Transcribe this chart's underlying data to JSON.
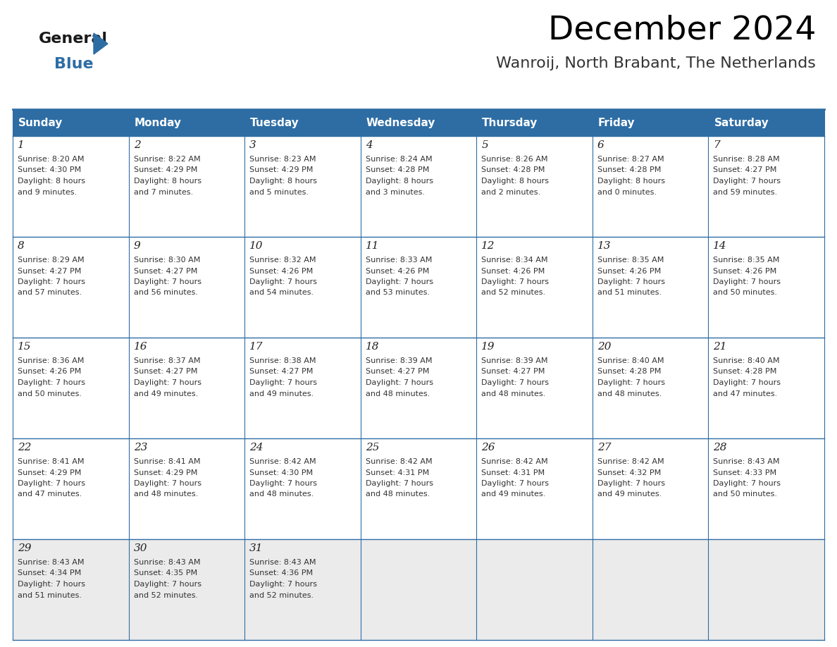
{
  "title": "December 2024",
  "subtitle": "Wanroij, North Brabant, The Netherlands",
  "header_color": "#2E6DA4",
  "header_text_color": "#FFFFFF",
  "row_bg_colors": [
    "#FFFFFF",
    "#FFFFFF",
    "#FFFFFF",
    "#FFFFFF",
    "#EBEBEB"
  ],
  "border_color": "#2E6DA4",
  "cell_border_color": "#AAAAAA",
  "day_names": [
    "Sunday",
    "Monday",
    "Tuesday",
    "Wednesday",
    "Thursday",
    "Friday",
    "Saturday"
  ],
  "weeks": [
    [
      {
        "day": 1,
        "sunrise": "8:20 AM",
        "sunset": "4:30 PM",
        "daylight1": "8 hours",
        "daylight2": "and 9 minutes."
      },
      {
        "day": 2,
        "sunrise": "8:22 AM",
        "sunset": "4:29 PM",
        "daylight1": "8 hours",
        "daylight2": "and 7 minutes."
      },
      {
        "day": 3,
        "sunrise": "8:23 AM",
        "sunset": "4:29 PM",
        "daylight1": "8 hours",
        "daylight2": "and 5 minutes."
      },
      {
        "day": 4,
        "sunrise": "8:24 AM",
        "sunset": "4:28 PM",
        "daylight1": "8 hours",
        "daylight2": "and 3 minutes."
      },
      {
        "day": 5,
        "sunrise": "8:26 AM",
        "sunset": "4:28 PM",
        "daylight1": "8 hours",
        "daylight2": "and 2 minutes."
      },
      {
        "day": 6,
        "sunrise": "8:27 AM",
        "sunset": "4:28 PM",
        "daylight1": "8 hours",
        "daylight2": "and 0 minutes."
      },
      {
        "day": 7,
        "sunrise": "8:28 AM",
        "sunset": "4:27 PM",
        "daylight1": "7 hours",
        "daylight2": "and 59 minutes."
      }
    ],
    [
      {
        "day": 8,
        "sunrise": "8:29 AM",
        "sunset": "4:27 PM",
        "daylight1": "7 hours",
        "daylight2": "and 57 minutes."
      },
      {
        "day": 9,
        "sunrise": "8:30 AM",
        "sunset": "4:27 PM",
        "daylight1": "7 hours",
        "daylight2": "and 56 minutes."
      },
      {
        "day": 10,
        "sunrise": "8:32 AM",
        "sunset": "4:26 PM",
        "daylight1": "7 hours",
        "daylight2": "and 54 minutes."
      },
      {
        "day": 11,
        "sunrise": "8:33 AM",
        "sunset": "4:26 PM",
        "daylight1": "7 hours",
        "daylight2": "and 53 minutes."
      },
      {
        "day": 12,
        "sunrise": "8:34 AM",
        "sunset": "4:26 PM",
        "daylight1": "7 hours",
        "daylight2": "and 52 minutes."
      },
      {
        "day": 13,
        "sunrise": "8:35 AM",
        "sunset": "4:26 PM",
        "daylight1": "7 hours",
        "daylight2": "and 51 minutes."
      },
      {
        "day": 14,
        "sunrise": "8:35 AM",
        "sunset": "4:26 PM",
        "daylight1": "7 hours",
        "daylight2": "and 50 minutes."
      }
    ],
    [
      {
        "day": 15,
        "sunrise": "8:36 AM",
        "sunset": "4:26 PM",
        "daylight1": "7 hours",
        "daylight2": "and 50 minutes."
      },
      {
        "day": 16,
        "sunrise": "8:37 AM",
        "sunset": "4:27 PM",
        "daylight1": "7 hours",
        "daylight2": "and 49 minutes."
      },
      {
        "day": 17,
        "sunrise": "8:38 AM",
        "sunset": "4:27 PM",
        "daylight1": "7 hours",
        "daylight2": "and 49 minutes."
      },
      {
        "day": 18,
        "sunrise": "8:39 AM",
        "sunset": "4:27 PM",
        "daylight1": "7 hours",
        "daylight2": "and 48 minutes."
      },
      {
        "day": 19,
        "sunrise": "8:39 AM",
        "sunset": "4:27 PM",
        "daylight1": "7 hours",
        "daylight2": "and 48 minutes."
      },
      {
        "day": 20,
        "sunrise": "8:40 AM",
        "sunset": "4:28 PM",
        "daylight1": "7 hours",
        "daylight2": "and 48 minutes."
      },
      {
        "day": 21,
        "sunrise": "8:40 AM",
        "sunset": "4:28 PM",
        "daylight1": "7 hours",
        "daylight2": "and 47 minutes."
      }
    ],
    [
      {
        "day": 22,
        "sunrise": "8:41 AM",
        "sunset": "4:29 PM",
        "daylight1": "7 hours",
        "daylight2": "and 47 minutes."
      },
      {
        "day": 23,
        "sunrise": "8:41 AM",
        "sunset": "4:29 PM",
        "daylight1": "7 hours",
        "daylight2": "and 48 minutes."
      },
      {
        "day": 24,
        "sunrise": "8:42 AM",
        "sunset": "4:30 PM",
        "daylight1": "7 hours",
        "daylight2": "and 48 minutes."
      },
      {
        "day": 25,
        "sunrise": "8:42 AM",
        "sunset": "4:31 PM",
        "daylight1": "7 hours",
        "daylight2": "and 48 minutes."
      },
      {
        "day": 26,
        "sunrise": "8:42 AM",
        "sunset": "4:31 PM",
        "daylight1": "7 hours",
        "daylight2": "and 49 minutes."
      },
      {
        "day": 27,
        "sunrise": "8:42 AM",
        "sunset": "4:32 PM",
        "daylight1": "7 hours",
        "daylight2": "and 49 minutes."
      },
      {
        "day": 28,
        "sunrise": "8:43 AM",
        "sunset": "4:33 PM",
        "daylight1": "7 hours",
        "daylight2": "and 50 minutes."
      }
    ],
    [
      {
        "day": 29,
        "sunrise": "8:43 AM",
        "sunset": "4:34 PM",
        "daylight1": "7 hours",
        "daylight2": "and 51 minutes."
      },
      {
        "day": 30,
        "sunrise": "8:43 AM",
        "sunset": "4:35 PM",
        "daylight1": "7 hours",
        "daylight2": "and 52 minutes."
      },
      {
        "day": 31,
        "sunrise": "8:43 AM",
        "sunset": "4:36 PM",
        "daylight1": "7 hours",
        "daylight2": "and 52 minutes."
      },
      null,
      null,
      null,
      null
    ]
  ]
}
